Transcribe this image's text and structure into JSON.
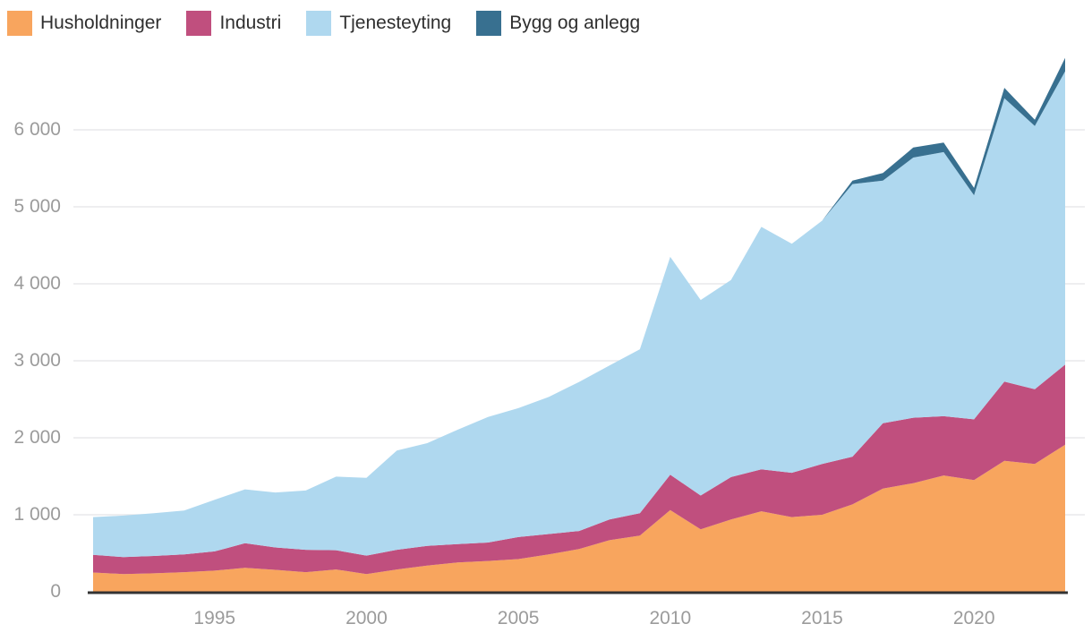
{
  "legend": {
    "position": "top-left",
    "items_note": "legend labels mirror chart_data.series names"
  },
  "colors": {
    "husholdninger": "#F8A55E",
    "industri": "#C04F7E",
    "tjenesteyting": "#AFD8EF",
    "bygg_og_anlegg": "#387090",
    "axis_text": "#9B9B9B",
    "legend_text": "#2F2F2F",
    "grid_line": "#E9E9EC",
    "axis_line": "#333333",
    "background": "#FFFFFF"
  },
  "chart_data": {
    "type": "area",
    "stacked": true,
    "title": "",
    "xlabel": "",
    "ylabel": "",
    "grid": "horizontal",
    "legend_position": "top-left",
    "xlim": [
      1991,
      2023
    ],
    "ylim": [
      0,
      7000
    ],
    "x": [
      1991,
      1992,
      1993,
      1994,
      1995,
      1996,
      1997,
      1998,
      1999,
      2000,
      2001,
      2002,
      2003,
      2004,
      2005,
      2006,
      2007,
      2008,
      2009,
      2010,
      2011,
      2012,
      2013,
      2014,
      2015,
      2016,
      2017,
      2018,
      2019,
      2020,
      2021,
      2022,
      2023
    ],
    "series": [
      {
        "name": "Husholdninger",
        "color": "#F8A55E",
        "values": [
          250,
          230,
          240,
          255,
          275,
          310,
          285,
          255,
          290,
          230,
          290,
          340,
          380,
          400,
          425,
          485,
          555,
          670,
          730,
          1060,
          810,
          940,
          1045,
          970,
          1000,
          1135,
          1340,
          1410,
          1510,
          1450,
          1700,
          1660,
          1910
        ]
      },
      {
        "name": "Industri",
        "color": "#C04F7E",
        "values": [
          230,
          220,
          225,
          230,
          250,
          320,
          290,
          290,
          250,
          240,
          255,
          255,
          240,
          240,
          285,
          265,
          235,
          270,
          290,
          460,
          440,
          550,
          545,
          575,
          660,
          620,
          850,
          850,
          770,
          790,
          1030,
          970,
          1040
        ]
      },
      {
        "name": "Tjenesteyting",
        "color": "#AFD8EF",
        "values": [
          490,
          540,
          555,
          570,
          670,
          700,
          715,
          770,
          955,
          1010,
          1290,
          1335,
          1485,
          1630,
          1675,
          1780,
          1935,
          2000,
          2130,
          2830,
          2540,
          2560,
          3150,
          2975,
          3160,
          3540,
          3150,
          3380,
          3430,
          2910,
          3680,
          3420,
          3810
        ]
      },
      {
        "name": "Bygg og anlegg",
        "color": "#387090",
        "values": [
          0,
          0,
          0,
          0,
          0,
          0,
          0,
          0,
          0,
          0,
          0,
          0,
          0,
          0,
          0,
          0,
          0,
          0,
          0,
          0,
          0,
          0,
          0,
          0,
          0,
          45,
          100,
          130,
          125,
          95,
          135,
          80,
          175
        ]
      }
    ],
    "yticks": [
      {
        "value": 0,
        "label": "0"
      },
      {
        "value": 1000,
        "label": "1 000"
      },
      {
        "value": 2000,
        "label": "2 000"
      },
      {
        "value": 3000,
        "label": "3 000"
      },
      {
        "value": 4000,
        "label": "4 000"
      },
      {
        "value": 5000,
        "label": "5 000"
      },
      {
        "value": 6000,
        "label": "6 000"
      }
    ],
    "xticks": [
      {
        "value": 1995,
        "label": "1995"
      },
      {
        "value": 2000,
        "label": "2000"
      },
      {
        "value": 2005,
        "label": "2005"
      },
      {
        "value": 2010,
        "label": "2010"
      },
      {
        "value": 2015,
        "label": "2015"
      },
      {
        "value": 2020,
        "label": "2020"
      }
    ]
  }
}
